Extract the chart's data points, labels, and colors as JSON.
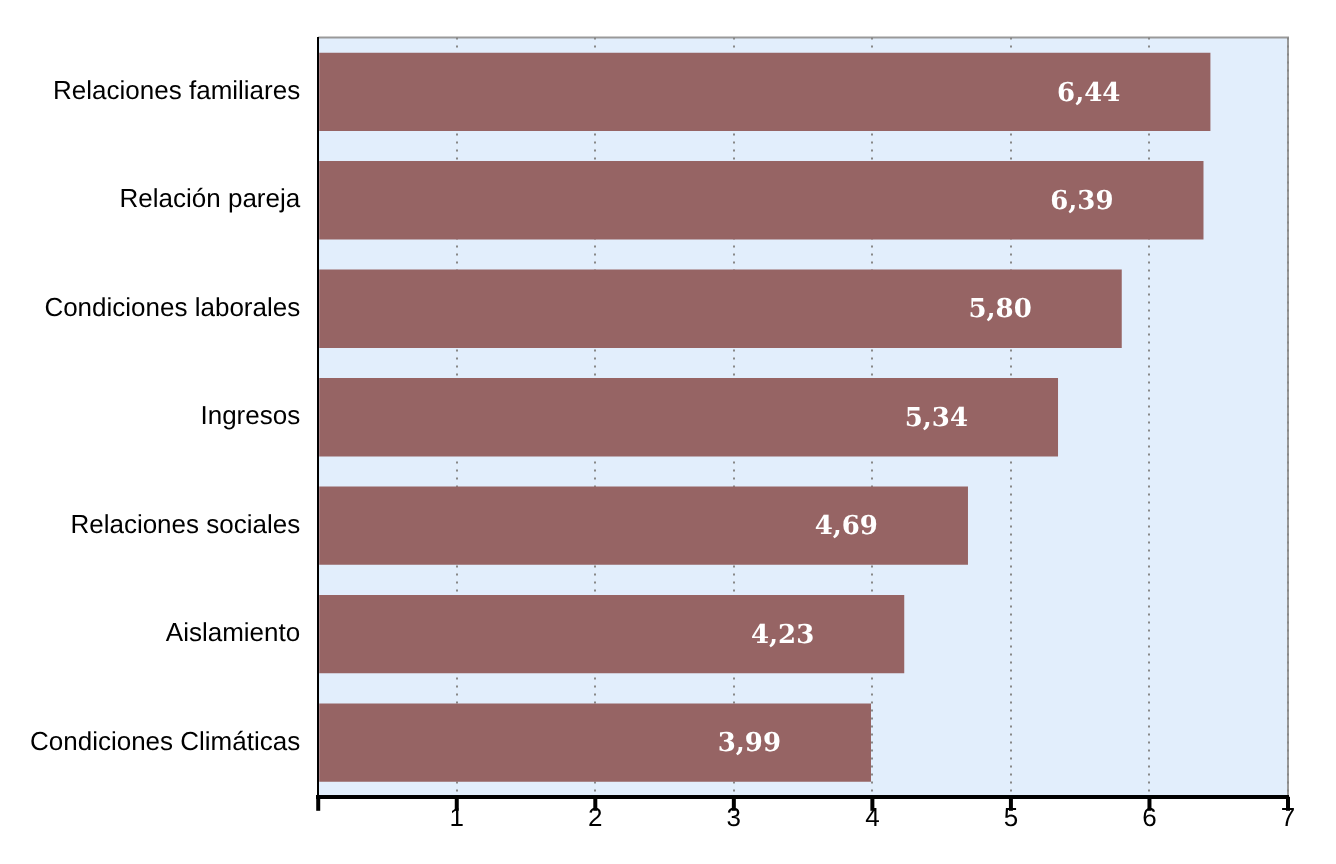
{
  "chart_data": {
    "type": "bar",
    "orientation": "horizontal",
    "categories": [
      "Relaciones familiares",
      "Relación pareja",
      "Condiciones laborales",
      "Ingresos",
      "Relaciones sociales",
      "Aislamiento",
      "Condiciones Climáticas"
    ],
    "values": [
      6.44,
      6.39,
      5.8,
      5.34,
      4.69,
      4.23,
      3.99
    ],
    "value_labels": [
      "6,44",
      "6,39",
      "5,80",
      "5,34",
      "4,69",
      "4,23",
      "3,99"
    ],
    "color": "#966464",
    "xlim": [
      0,
      7
    ],
    "xticks": [
      {
        "value": 0,
        "label": null
      },
      1,
      2,
      3,
      4,
      5,
      6,
      7
    ],
    "grid": "x"
  }
}
